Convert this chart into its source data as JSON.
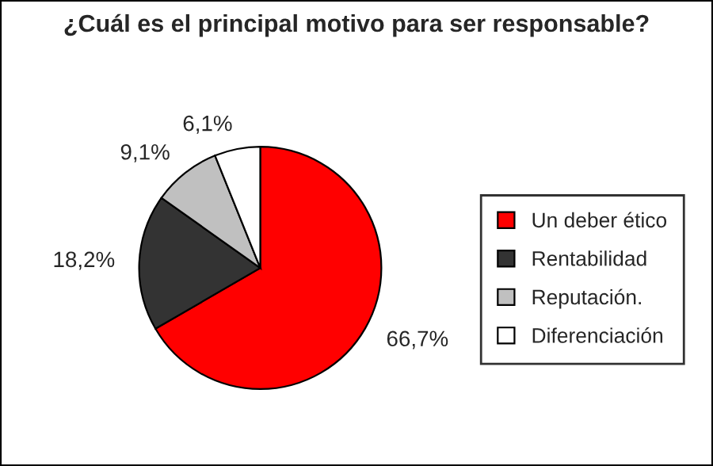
{
  "chart_data": {
    "type": "pie",
    "title": "¿Cuál es el principal motivo para ser responsable?",
    "categories": [
      "Un deber ético",
      "Rentabilidad",
      "Reputación.",
      "Diferenciación"
    ],
    "values": [
      66.7,
      18.2,
      9.1,
      6.1
    ],
    "value_labels": [
      "66,7%",
      "18,2%",
      "9,1%",
      "6,1%"
    ],
    "colors": [
      "#ff0000",
      "#333333",
      "#c0c0c0",
      "#ffffff"
    ],
    "legend": "right"
  }
}
